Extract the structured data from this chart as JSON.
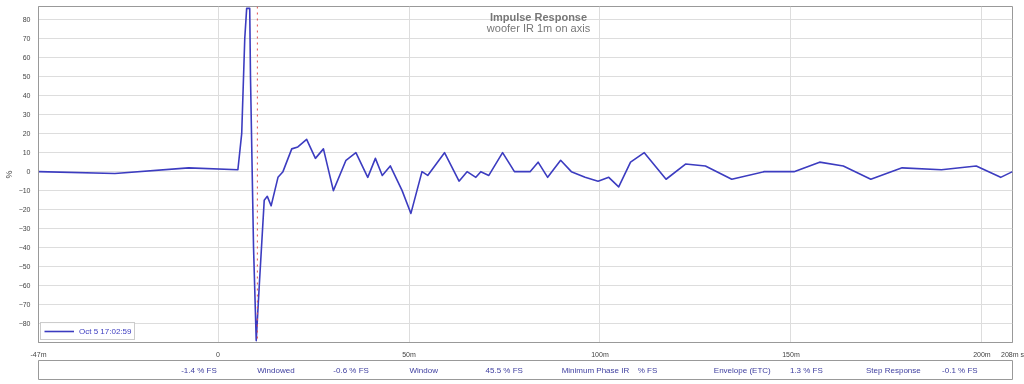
{
  "chart_data": {
    "type": "line",
    "title": "Impulse Response",
    "subtitle": "woofer IR 1m on axis",
    "ylabel": "%",
    "x": [
      -47,
      -27,
      -7.7,
      5.2,
      6.2,
      7,
      7.5,
      8.3,
      8.5,
      9.3,
      10,
      10.8,
      12.1,
      12.9,
      13.9,
      15.7,
      17,
      19.3,
      20.9,
      23.2,
      25.5,
      27.6,
      30.2,
      33.5,
      36.1,
      39.2,
      41.2,
      43,
      45.1,
      48.2,
      50.5,
      53.4,
      54.9,
      59.3,
      63.1,
      65.2,
      67.5,
      68.8,
      70.9,
      74.5,
      77.6,
      81.7,
      83.8,
      86.3,
      89.7,
      92.5,
      96.1,
      99.5,
      102.3,
      104.9,
      108,
      111.6,
      117.3,
      122.4,
      127.6,
      134.5,
      143,
      150.8,
      157.5,
      163.7,
      170.9,
      179.1,
      189.4,
      198.5,
      204.9,
      208
    ],
    "series": [
      {
        "name": "Oct 5 17:02:59",
        "color": "#3c3cc0",
        "values": [
          0,
          -1,
          2,
          1,
          20,
          70,
          86,
          86,
          50,
          -40,
          -89,
          -60,
          -15,
          -13,
          -18,
          -3,
          0,
          12,
          13,
          17,
          7,
          12,
          -10,
          6,
          10,
          -3,
          7,
          -2,
          3,
          -10,
          -22,
          0,
          -2,
          10,
          -5,
          0,
          -3,
          0,
          -2,
          10,
          0,
          0,
          5,
          -3,
          6,
          0,
          -3,
          -5,
          -3,
          -8,
          5,
          10,
          -4,
          4,
          3,
          -4,
          0,
          0,
          5,
          3,
          -4,
          2,
          1,
          3,
          -3,
          0
        ]
      }
    ],
    "xlim": [
      -47,
      208
    ],
    "ylim": [
      -90,
      87
    ],
    "xticks": [
      {
        "value": -47,
        "label": "-47m"
      },
      0,
      {
        "value": 50,
        "label": "50m"
      },
      {
        "value": 100,
        "label": "100m"
      },
      {
        "value": 150,
        "label": "150m"
      },
      {
        "value": 200,
        "label": "200m"
      },
      {
        "value": 208,
        "label": "208m s"
      }
    ],
    "yticks": [
      -80,
      -70,
      -60,
      -50,
      -40,
      -30,
      -20,
      -10,
      0,
      10,
      20,
      30,
      40,
      50,
      60,
      70,
      80
    ],
    "ref_lines": [
      {
        "axis": "x",
        "value": 10.3,
        "color": "#e05050",
        "line_style": "dotted"
      }
    ],
    "annotations": [
      "-1.4 % FS",
      "Windowed",
      "-0.6 % FS",
      "Window",
      "45.5 % FS",
      "Minimum Phase IR",
      "% FS",
      "Envelope (ETC)",
      "1.3 % FS",
      "Step Response",
      "-0.1 % FS"
    ],
    "grid": true,
    "legend": "bottom left",
    "line_style": "solid",
    "marker": "none"
  }
}
